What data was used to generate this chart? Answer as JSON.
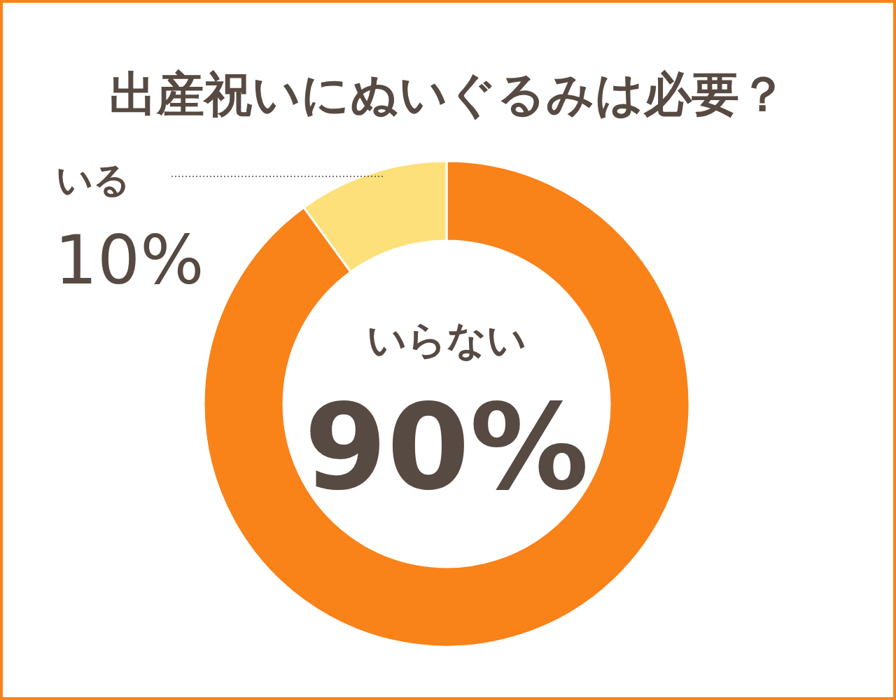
{
  "chart_data": {
    "type": "donut",
    "title": "出産祝いにぬいぐるみは必要？",
    "categories": [
      "いらない",
      "いる"
    ],
    "values": [
      90,
      10
    ],
    "colors": [
      "#f98219",
      "#fde07a"
    ],
    "value_labels": [
      "90%",
      "10%"
    ]
  }
}
